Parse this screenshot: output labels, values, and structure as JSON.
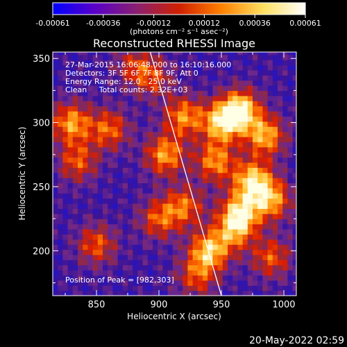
{
  "chart_data": {
    "type": "heatmap",
    "title": "Reconstructed RHESSI Image",
    "xlabel": "Heliocentric X (arcsec)",
    "ylabel": "Heliocentric Y (arcsec)",
    "xlim": [
      815,
      1010
    ],
    "ylim": [
      165,
      355
    ],
    "x_ticks": [
      850,
      900,
      950,
      1000
    ],
    "y_ticks": [
      200,
      250,
      300,
      350
    ],
    "colorbar": {
      "label": "(photons cm⁻² s⁻¹ asec⁻²)",
      "range": [
        -0.00061,
        0.00061
      ],
      "ticks": [
        "-0.00061",
        "-0.00036",
        "-0.00012",
        "0.00012",
        "0.00036",
        "0.00061"
      ],
      "colors": [
        "#0000ff",
        "#5a00c8",
        "#8a2070",
        "#d02000",
        "#ff8000",
        "#ffe060",
        "#ffffff"
      ]
    },
    "annotations": [
      "27-Mar-2015 16:06:48.000 to 16:10:16.000",
      "Detectors: 3F 5F 6F 7F 8F 9F, Att 0",
      "Energy Range: 12.0 - 25.0 keV",
      "Clean     Total counts: 2.32E+03"
    ],
    "peak_label": "Position of Peak = [982,303]",
    "peak": [
      982,
      303
    ],
    "limb_line": [
      [
        893,
        355
      ],
      [
        950,
        165
      ]
    ],
    "blobs": [
      {
        "x": 965,
        "y": 310,
        "v": 1.0
      },
      {
        "x": 950,
        "y": 300,
        "v": 0.85
      },
      {
        "x": 985,
        "y": 290,
        "v": 0.8
      },
      {
        "x": 975,
        "y": 255,
        "v": 0.9
      },
      {
        "x": 965,
        "y": 230,
        "v": 0.85
      },
      {
        "x": 990,
        "y": 240,
        "v": 0.75
      },
      {
        "x": 945,
        "y": 270,
        "v": 0.7
      },
      {
        "x": 940,
        "y": 200,
        "v": 0.85
      },
      {
        "x": 960,
        "y": 215,
        "v": 0.6
      },
      {
        "x": 920,
        "y": 305,
        "v": 0.7
      },
      {
        "x": 905,
        "y": 275,
        "v": 0.75
      },
      {
        "x": 920,
        "y": 235,
        "v": 0.6
      },
      {
        "x": 900,
        "y": 225,
        "v": 0.55
      },
      {
        "x": 830,
        "y": 300,
        "v": 0.75
      },
      {
        "x": 835,
        "y": 270,
        "v": 0.55
      },
      {
        "x": 860,
        "y": 295,
        "v": 0.6
      },
      {
        "x": 895,
        "y": 335,
        "v": 0.45
      },
      {
        "x": 990,
        "y": 195,
        "v": 0.55
      },
      {
        "x": 850,
        "y": 205,
        "v": 0.55
      },
      {
        "x": 880,
        "y": 345,
        "v": 0.4
      },
      {
        "x": 930,
        "y": 180,
        "v": 0.5
      }
    ]
  },
  "footer": {
    "timestamp": "20-May-2022 02:59"
  }
}
